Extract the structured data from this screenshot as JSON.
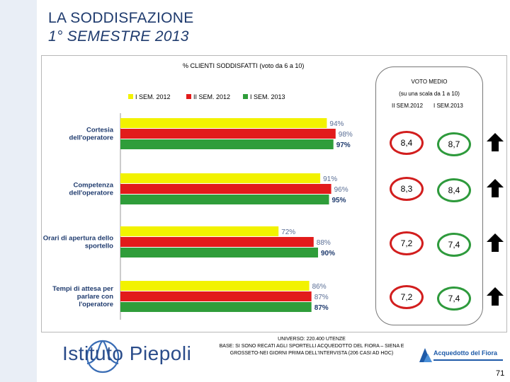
{
  "header": {
    "title_line1": "LA SODDISFAZIONE",
    "title_line2": "1° SEMESTRE 2013"
  },
  "chart_data": {
    "type": "bar",
    "orientation": "horizontal",
    "title": "% CLIENTI SODDISFATTI  (voto da 6 a 10)",
    "categories": [
      "Cortesia dell'operatore",
      "Competenza dell'operatore",
      "Orari di apertura dello sportello",
      "Tempi di attesa per parlare con l'operatore"
    ],
    "category_lines": [
      [
        "Cortesia",
        "dell'operatore"
      ],
      [
        "Competenza",
        "dell'operatore"
      ],
      [
        "Orari di apertura dello",
        "sportello"
      ],
      [
        "Tempi di attesa per",
        "parlare con",
        "l'operatore"
      ]
    ],
    "series": [
      {
        "name": "I SEM. 2012",
        "color": "#f2f200",
        "values": [
          94,
          91,
          72,
          86
        ],
        "labels": [
          "94%",
          "91%",
          "72%",
          "86%"
        ]
      },
      {
        "name": "II SEM. 2012",
        "color": "#e21b1b",
        "values": [
          98,
          96,
          88,
          87
        ],
        "labels": [
          "98%",
          "96%",
          "88%",
          "87%"
        ]
      },
      {
        "name": "I SEM. 2013",
        "color": "#2f9d3a",
        "values": [
          97,
          95,
          90,
          87
        ],
        "labels": [
          "97%",
          "95%",
          "90%",
          "87%"
        ]
      }
    ],
    "xlim": [
      0,
      100
    ],
    "legend_position": "top"
  },
  "voto_medio": {
    "title": "VOTO MEDIO",
    "scale": "(su una scala da 1 a 10)",
    "col_prev": "II SEM.2012",
    "col_curr": "I SEM.2013",
    "rows": [
      {
        "prev": "8,4",
        "curr": "8,7",
        "trend": "up"
      },
      {
        "prev": "8,3",
        "curr": "8,4",
        "trend": "up"
      },
      {
        "prev": "7,2",
        "curr": "7,4",
        "trend": "up"
      },
      {
        "prev": "7,2",
        "curr": "7,4",
        "trend": "up"
      }
    ]
  },
  "footer": {
    "logo_text": "Istituto Piepoli",
    "universe": "UNIVERSO: 220.400 UTENZE",
    "base_line1": "BASE: SI SONO RECATI AGLI SPORTELLI ACQUEDOTTO DEL FIORA – SIENA E",
    "base_line2": "GROSSETO-NEI GIORNI PRIMA DELL'INTERVISTA (206 CASI AD HOC)",
    "partner": "Acquedotto del Fiora",
    "page_number": "71"
  }
}
